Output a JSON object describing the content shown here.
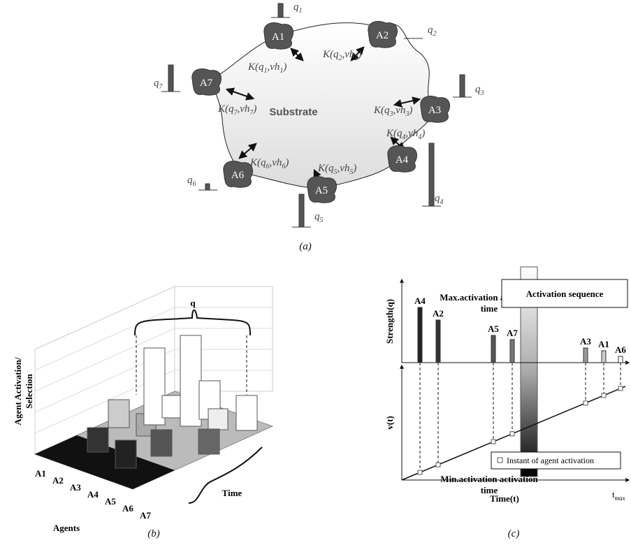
{
  "panel_a": {
    "label": "(a)",
    "substrate": "Substrate",
    "agents": [
      "A1",
      "A2",
      "A3",
      "A4",
      "A5",
      "A6",
      "A7"
    ],
    "q_labels": [
      [
        "q",
        "1"
      ],
      [
        "q",
        "2"
      ],
      [
        "q",
        "3"
      ],
      [
        "q",
        "4"
      ],
      [
        "q",
        "5"
      ],
      [
        "q",
        "6"
      ],
      [
        "q",
        "7"
      ]
    ],
    "k_labels": [
      [
        "K(q",
        "1",
        ",vh",
        "1",
        ")"
      ],
      [
        "K(q",
        "2",
        ",vh",
        "2",
        ")"
      ],
      [
        "K(q",
        "3",
        ",vh",
        "3",
        ")"
      ],
      [
        "K(q",
        "4",
        ",vh",
        "4",
        ")"
      ],
      [
        "K(q",
        "5",
        ",vh",
        "5",
        ")"
      ],
      [
        "K(q",
        "6",
        ",vh",
        "6",
        ")"
      ],
      [
        "K(q",
        "7",
        ",vh",
        "7",
        ")"
      ]
    ]
  },
  "panel_b": {
    "label": "(b)",
    "bracket_label": "q",
    "colorbar_max": "Max. activation time",
    "colorbar_min": "Min. activation time",
    "z_axis_title": "Agent Activation/ Selection",
    "x_axis_title": "Agents",
    "y_axis_title": "Time",
    "agents": [
      "A1",
      "A2",
      "A3",
      "A4",
      "A5",
      "A6",
      "A7"
    ]
  },
  "panel_c": {
    "label": "(c)",
    "legend_title": "Activation sequence",
    "y_top_title": "Strength(q)",
    "y_bottom_title": "v(t)",
    "x_axis_title": "Time(t)",
    "x_end_label": [
      "t",
      "max"
    ],
    "spike_labels": [
      "A4",
      "A2",
      "A5",
      "A7",
      "A3",
      "A1",
      "A6"
    ],
    "marker_legend": "Instant of agent activation"
  }
}
